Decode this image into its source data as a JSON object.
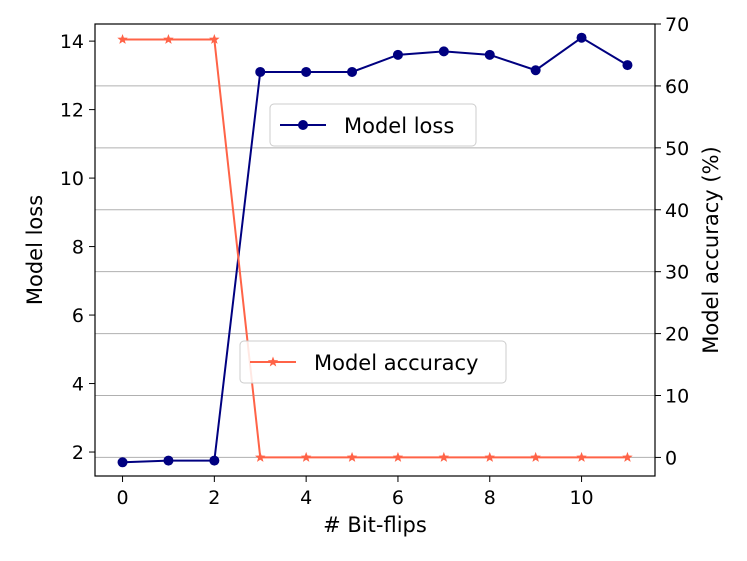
{
  "chart_data": {
    "type": "line",
    "xlabel": "# Bit-flips",
    "ylabel_left": "Model loss",
    "ylabel_right": "Model accuracy (%)",
    "xlim": [
      -0.6,
      11.6
    ],
    "ylim_left": [
      1.3,
      14.5
    ],
    "ylim_right": [
      -3,
      70
    ],
    "x_ticks": [
      0,
      2,
      4,
      6,
      8,
      10
    ],
    "y_left_ticks": [
      2,
      4,
      6,
      8,
      10,
      12,
      14
    ],
    "y_right_ticks": [
      0,
      10,
      20,
      30,
      40,
      50,
      60,
      70
    ],
    "grid": "horizontal lines at right-axis ticks",
    "x": [
      0,
      1,
      2,
      3,
      4,
      5,
      6,
      7,
      8,
      9,
      10,
      11
    ],
    "series": [
      {
        "name": "Model loss",
        "axis": "left",
        "color": "#000080",
        "marker": "circle",
        "legend_position": "upper-center",
        "values": [
          1.7,
          1.75,
          1.75,
          13.1,
          13.1,
          13.1,
          13.6,
          13.7,
          13.6,
          13.15,
          14.1,
          13.3
        ]
      },
      {
        "name": "Model accuracy",
        "axis": "right",
        "color": "#ff6347",
        "marker": "star",
        "legend_position": "lower-center",
        "values": [
          67.5,
          67.5,
          67.5,
          0,
          0,
          0,
          0,
          0,
          0,
          0,
          0,
          0
        ]
      }
    ]
  }
}
